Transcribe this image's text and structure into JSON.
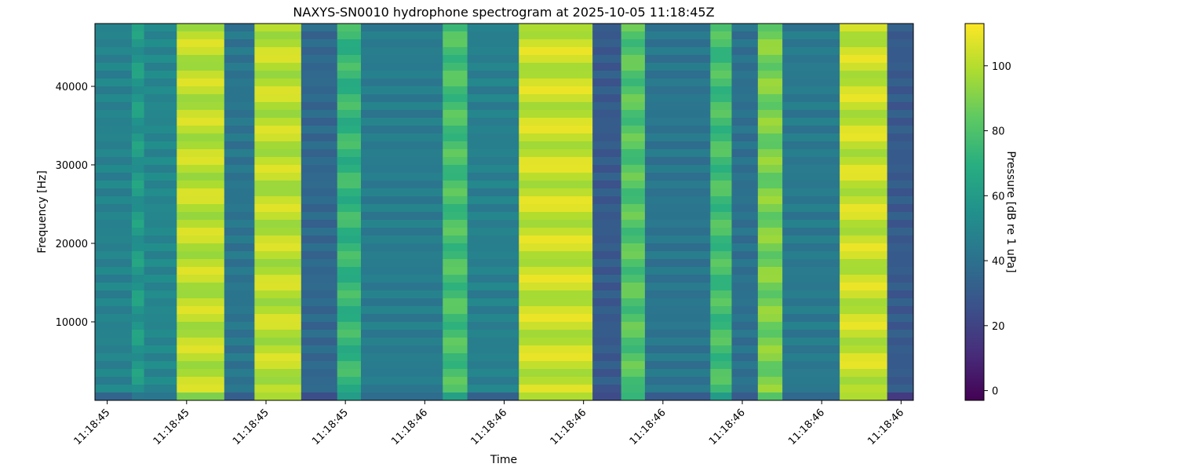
{
  "chart_data": {
    "type": "heatmap",
    "title": "NAXYS-SN0010 hydrophone spectrogram at 2025-10-05 11:18:45Z",
    "xlabel": "Time",
    "ylabel": "Frequency [Hz]",
    "colorbar_label": "Pressure [dB re 1 uPa]",
    "colormap": "viridis",
    "value_range": [
      -3,
      113
    ],
    "y_range": [
      0,
      48000
    ],
    "y_ticks": [
      10000,
      20000,
      30000,
      40000
    ],
    "colorbar_ticks": [
      0,
      20,
      40,
      60,
      80,
      100
    ],
    "x_tick_labels": [
      "11:18:45",
      "11:18:45",
      "11:18:45",
      "11:18:45",
      "11:18:46",
      "11:18:46",
      "11:18:46",
      "11:18:46",
      "11:18:46",
      "11:18:46",
      "11:18:46"
    ],
    "x_tick_fractions": [
      0.015,
      0.112,
      0.209,
      0.306,
      0.403,
      0.5,
      0.597,
      0.694,
      0.791,
      0.888,
      0.985
    ],
    "time_bands": [
      {
        "start": 0.0,
        "end": 0.045,
        "level": 48
      },
      {
        "start": 0.045,
        "end": 0.06,
        "level": 66,
        "modulated": true
      },
      {
        "start": 0.06,
        "end": 0.1,
        "level": 50
      },
      {
        "start": 0.1,
        "end": 0.158,
        "level": 108,
        "modulated": true
      },
      {
        "start": 0.158,
        "end": 0.195,
        "level": 42
      },
      {
        "start": 0.195,
        "end": 0.252,
        "level": 108,
        "modulated": true
      },
      {
        "start": 0.252,
        "end": 0.296,
        "level": 36
      },
      {
        "start": 0.296,
        "end": 0.325,
        "level": 80,
        "modulated": true
      },
      {
        "start": 0.325,
        "end": 0.425,
        "level": 45
      },
      {
        "start": 0.425,
        "end": 0.455,
        "level": 85,
        "modulated": true
      },
      {
        "start": 0.455,
        "end": 0.518,
        "level": 47
      },
      {
        "start": 0.518,
        "end": 0.608,
        "level": 110,
        "modulated": true
      },
      {
        "start": 0.608,
        "end": 0.643,
        "level": 30
      },
      {
        "start": 0.643,
        "end": 0.672,
        "level": 88,
        "modulated": true
      },
      {
        "start": 0.672,
        "end": 0.752,
        "level": 42
      },
      {
        "start": 0.752,
        "end": 0.778,
        "level": 84,
        "modulated": true
      },
      {
        "start": 0.778,
        "end": 0.81,
        "level": 40
      },
      {
        "start": 0.81,
        "end": 0.84,
        "level": 96,
        "modulated": true
      },
      {
        "start": 0.84,
        "end": 0.91,
        "level": 44
      },
      {
        "start": 0.91,
        "end": 0.968,
        "level": 110,
        "modulated": true
      },
      {
        "start": 0.968,
        "end": 1.0,
        "level": 30
      }
    ]
  }
}
